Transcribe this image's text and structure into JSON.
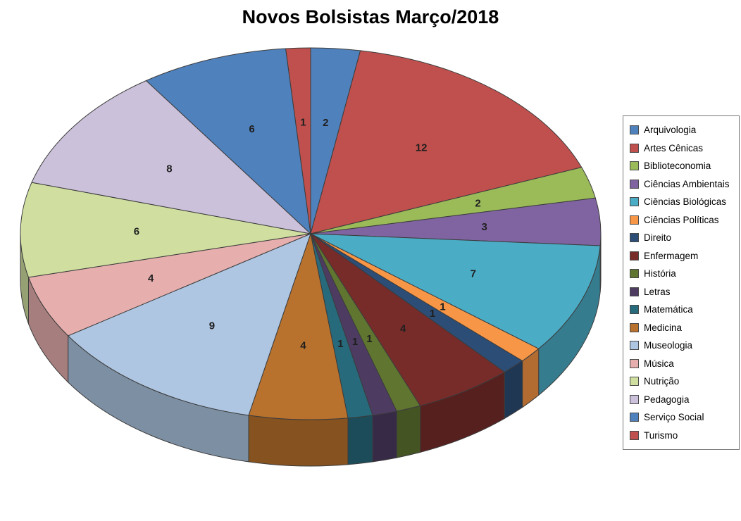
{
  "title": "Novos Bolsistas Março/2018",
  "chart_data": {
    "type": "pie",
    "style": "3d",
    "title": "Novos Bolsistas Março/2018",
    "legend_position": "right",
    "direction": "clockwise",
    "start_angle_deg": 0,
    "label_type": "value",
    "total": 73,
    "categories": [
      "Arquivologia",
      "Artes Cênicas",
      "Biblioteconomia",
      "Ciências Ambientais",
      "Ciências Biológicas",
      "Ciências Políticas",
      "Direito",
      "Enfermagem",
      "História",
      "Letras",
      "Matemática",
      "Medicina",
      "Museologia",
      "Música",
      "Nutrição",
      "Pedagogia",
      "Serviço Social",
      "Turismo"
    ],
    "values": [
      2,
      12,
      2,
      3,
      7,
      1,
      1,
      4,
      1,
      1,
      1,
      4,
      9,
      4,
      6,
      8,
      6,
      1
    ],
    "colors": [
      "#4F81BD",
      "#C0504D",
      "#9BBB59",
      "#8064A2",
      "#4BACC6",
      "#F79646",
      "#2C4D75",
      "#772C2A",
      "#5F7530",
      "#4D3B62",
      "#276A7C",
      "#B9722D",
      "#AEC6E2",
      "#E6AFAE",
      "#D0DFA0",
      "#CCC1DA",
      "#4F81BD",
      "#C0504D"
    ]
  }
}
